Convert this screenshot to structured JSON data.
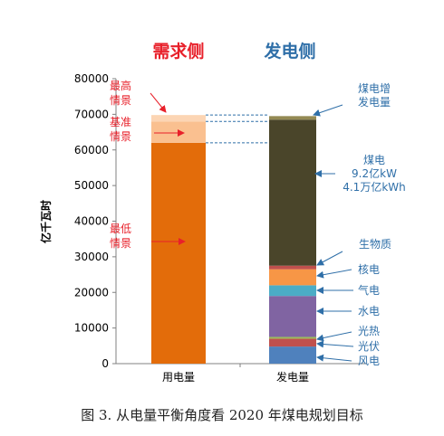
{
  "headers": {
    "demand": "需求侧",
    "supply": "发电侧"
  },
  "caption": "图 3.  从电量平衡角度看 2020 年煤电规划目标",
  "colors": {
    "demand_header": "#e8202a",
    "supply_header": "#2f6fa8",
    "demand_annotation": "#e8202a",
    "supply_annotation": "#2f6fa8"
  },
  "chart_data": {
    "type": "bar",
    "stacked": true,
    "ylabel": "亿千瓦时",
    "ylim": [
      0,
      80000
    ],
    "yticks": [
      0,
      10000,
      20000,
      30000,
      40000,
      50000,
      60000,
      70000,
      80000
    ],
    "grid": false,
    "categories": [
      "用电量",
      "发电量"
    ],
    "series": [
      {
        "category": "用电量",
        "name": "最低情景",
        "value": 62000,
        "color": "#e36c0a"
      },
      {
        "category": "用电量",
        "name": "基准情景",
        "value": 6000,
        "color": "#fac090"
      },
      {
        "category": "用电量",
        "name": "最高情景",
        "value": 1800,
        "color": "#fcd5b4"
      },
      {
        "category": "发电量",
        "name": "风电",
        "value": 4800,
        "color": "#4f81bd"
      },
      {
        "category": "发电量",
        "name": "光伏",
        "value": 2200,
        "color": "#c0504d"
      },
      {
        "category": "发电量",
        "name": "光热",
        "value": 500,
        "color": "#9bbb59"
      },
      {
        "category": "发电量",
        "name": "水电",
        "value": 11500,
        "color": "#8064a2"
      },
      {
        "category": "发电量",
        "name": "气电",
        "value": 3000,
        "color": "#4bacc6"
      },
      {
        "category": "发电量",
        "name": "核电",
        "value": 4500,
        "color": "#f79646"
      },
      {
        "category": "发电量",
        "name": "生物质",
        "value": 1000,
        "color": "#c0504d"
      },
      {
        "category": "发电量",
        "name": "煤电",
        "value": 41000,
        "color": "#4a452a"
      },
      {
        "category": "发电量",
        "name": "煤电增发电量",
        "value": 1000,
        "color": "#948a54"
      }
    ],
    "annotations_demand": [
      {
        "lines": [
          "最高",
          "情景"
        ],
        "value": 69000
      },
      {
        "lines": [
          "基准",
          "情景"
        ],
        "value": 65000
      },
      {
        "lines": [
          "最低",
          "情景"
        ],
        "value": 34000
      }
    ],
    "annotations_supply": [
      {
        "lines": [
          "煤电增",
          "发电量"
        ],
        "value": 69500
      },
      {
        "lines": [
          "煤电",
          "9.2亿kW",
          "4.1万亿kWh"
        ],
        "value": 53000
      },
      {
        "lines": [
          "生物质"
        ],
        "value": 25500
      },
      {
        "lines": [
          "核电"
        ],
        "value": 24000
      },
      {
        "lines": [
          "气电"
        ],
        "value": 20500
      },
      {
        "lines": [
          "水电"
        ],
        "value": 14500
      },
      {
        "lines": [
          "光热"
        ],
        "value": 7500
      },
      {
        "lines": [
          "光伏"
        ],
        "value": 5800
      },
      {
        "lines": [
          "风电"
        ],
        "value": 2500
      }
    ]
  }
}
